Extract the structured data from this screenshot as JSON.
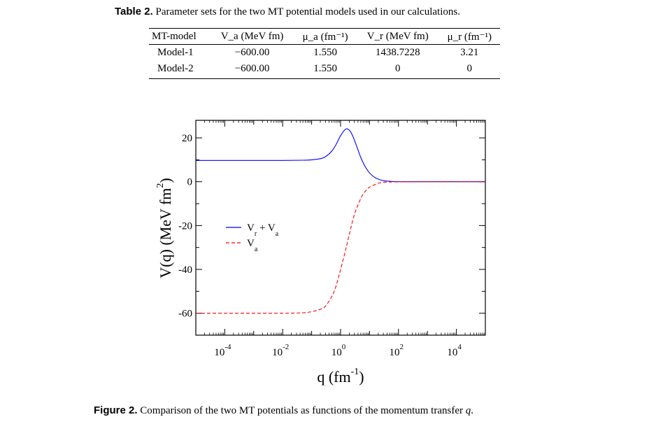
{
  "table": {
    "caption_label": "Table 2.",
    "caption_text": " Parameter sets for the two MT potential models used in our calculations.",
    "headers": [
      "MT-model",
      "V_a (MeV fm)",
      "μ_a (fm⁻¹)",
      "V_r (MeV fm)",
      "μ_r (fm⁻¹)"
    ],
    "rows": [
      [
        "Model-1",
        "−600.00",
        "1.550",
        "1438.7228",
        "3.21"
      ],
      [
        "Model-2",
        "−600.00",
        "1.550",
        "0",
        "0"
      ]
    ]
  },
  "figure": {
    "caption_label": "Figure 2.",
    "caption_text": " Comparison of the two MT potentials as functions of the momentum transfer ",
    "caption_var": "q",
    "caption_end": "."
  },
  "chart_data": {
    "type": "line",
    "x_scale": "log",
    "xlim": [
      1e-05,
      100000
    ],
    "ylim": [
      -70,
      28
    ],
    "x_ticks": [
      {
        "value": 0.0001,
        "base": "10",
        "exp": "-4"
      },
      {
        "value": 0.01,
        "base": "10",
        "exp": "-2"
      },
      {
        "value": 1,
        "base": "10",
        "exp": "0"
      },
      {
        "value": 100,
        "base": "10",
        "exp": "2"
      },
      {
        "value": 10000,
        "base": "10",
        "exp": "4"
      }
    ],
    "y_ticks": [
      {
        "value": 20,
        "label": "20"
      },
      {
        "value": 0,
        "label": "0"
      },
      {
        "value": -20,
        "label": "-20"
      },
      {
        "value": -40,
        "label": "-40"
      },
      {
        "value": -60,
        "label": "-60"
      }
    ],
    "xlabel": {
      "main": "q (fm",
      "sup": "-1",
      "end": ")"
    },
    "ylabel": {
      "main": "V(q) (MeV fm",
      "sup": "2",
      "end": ")"
    },
    "legend_position": "upper-left",
    "series": [
      {
        "name": "V_r + V_a",
        "legend_parts": [
          "V",
          "r",
          " + V",
          "a"
        ],
        "color": "#0000ff",
        "style": "solid",
        "x": [
          1e-05,
          0.0001,
          0.001,
          0.01,
          0.05,
          0.1,
          0.2,
          0.3,
          0.5,
          0.7,
          1,
          1.5,
          2,
          2.5,
          3,
          4,
          5,
          7,
          10,
          15,
          20,
          30,
          50,
          100,
          1000,
          10000,
          100000
        ],
        "y": [
          9.7,
          9.7,
          9.7,
          9.7,
          9.8,
          10.0,
          10.5,
          11.4,
          14.0,
          17.0,
          21.0,
          24.0,
          23.5,
          21.5,
          19.0,
          14.5,
          11.0,
          7.0,
          4.0,
          2.0,
          1.2,
          0.5,
          0.2,
          0.0,
          0.0,
          0.0,
          0.0
        ]
      },
      {
        "name": "V_a",
        "legend_parts": [
          "V",
          "a"
        ],
        "color": "#ff0000",
        "style": "dashed",
        "x": [
          1e-05,
          0.0001,
          0.001,
          0.01,
          0.05,
          0.1,
          0.2,
          0.3,
          0.5,
          0.7,
          1,
          1.5,
          2,
          3,
          5,
          7,
          10,
          20,
          30,
          50,
          100,
          1000,
          10000,
          100000
        ],
        "y": [
          -60.0,
          -60.0,
          -60.0,
          -60.0,
          -59.8,
          -59.3,
          -58.2,
          -56.8,
          -52.3,
          -47.5,
          -40.0,
          -31.0,
          -24.0,
          -15.0,
          -7.6,
          -4.5,
          -2.5,
          -0.7,
          -0.3,
          -0.1,
          -0.05,
          0.0,
          0.0,
          0.0
        ]
      }
    ]
  }
}
